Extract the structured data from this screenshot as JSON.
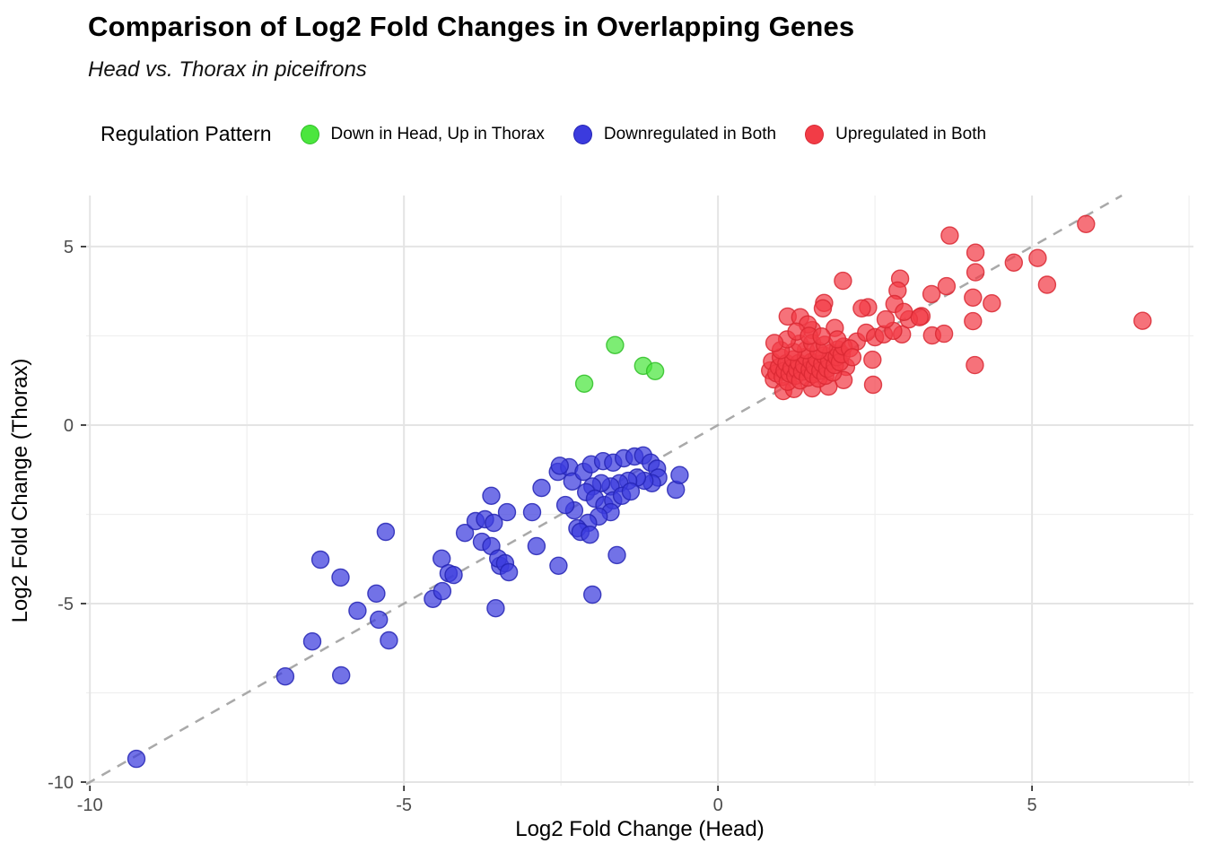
{
  "title": "Comparison of Log2 Fold Changes in Overlapping Genes",
  "subtitle": "Head vs. Thorax in piceifrons",
  "legend": {
    "title": "Regulation Pattern",
    "items": [
      {
        "label": "Down in Head, Up in Thorax",
        "color": "#4BE63E",
        "stroke": "#2FBF27"
      },
      {
        "label": "Downregulated in Both",
        "color": "#3B3BDE",
        "stroke": "#2424B4"
      },
      {
        "label": "Upregulated in Both",
        "color": "#F23C46",
        "stroke": "#D92833"
      }
    ]
  },
  "chart_data": {
    "type": "scatter",
    "title": "Comparison of Log2 Fold Changes in Overlapping Genes",
    "subtitle": "Head vs. Thorax in piceifrons",
    "xlabel": "Log2 Fold Change (Head)",
    "ylabel": "Log2 Fold Change (Thorax)",
    "xlim": [
      -10.06,
      7.57
    ],
    "ylim": [
      -10.1,
      6.43
    ],
    "x_ticks": [
      -10,
      -5,
      0,
      5
    ],
    "y_ticks": [
      5,
      0,
      -5,
      -10
    ],
    "grid": true,
    "legend_position": "top",
    "identity_line": {
      "equation": "y = x",
      "style": "dashed",
      "color": "#A9A9A9"
    },
    "series": [
      {
        "name": "Down in Head, Up in Thorax",
        "color": "#4BE63E",
        "stroke": "#2FBF27",
        "points": [
          [
            -1.64,
            2.24
          ],
          [
            -2.13,
            1.16
          ],
          [
            -1.19,
            1.66
          ],
          [
            -1.0,
            1.51
          ]
        ]
      },
      {
        "name": "Downregulated in Both",
        "color": "#3B3BDE",
        "stroke": "#2424B4",
        "points": [
          [
            -9.26,
            -9.35
          ],
          [
            -6.89,
            -7.04
          ],
          [
            -6.0,
            -7.01
          ],
          [
            -6.46,
            -6.06
          ],
          [
            -5.24,
            -6.03
          ],
          [
            -5.74,
            -5.2
          ],
          [
            -5.4,
            -5.45
          ],
          [
            -5.44,
            -4.72
          ],
          [
            -6.33,
            -3.77
          ],
          [
            -6.01,
            -4.27
          ],
          [
            -5.29,
            -2.99
          ],
          [
            -4.54,
            -4.87
          ],
          [
            -4.39,
            -4.65
          ],
          [
            -3.54,
            -5.13
          ],
          [
            -2.0,
            -4.75
          ],
          [
            -1.61,
            -3.64
          ],
          [
            -4.4,
            -3.74
          ],
          [
            -4.29,
            -4.15
          ],
          [
            -4.21,
            -4.2
          ],
          [
            -4.03,
            -3.02
          ],
          [
            -3.86,
            -2.69
          ],
          [
            -3.71,
            -2.64
          ],
          [
            -3.57,
            -2.74
          ],
          [
            -3.76,
            -3.27
          ],
          [
            -3.61,
            -3.39
          ],
          [
            -3.47,
            -3.94
          ],
          [
            -3.5,
            -3.74
          ],
          [
            -3.39,
            -3.87
          ],
          [
            -3.33,
            -4.12
          ],
          [
            -2.89,
            -3.39
          ],
          [
            -2.54,
            -3.94
          ],
          [
            -3.61,
            -1.98
          ],
          [
            -3.36,
            -2.44
          ],
          [
            -2.96,
            -2.44
          ],
          [
            -2.81,
            -1.76
          ],
          [
            -2.55,
            -1.31
          ],
          [
            -2.37,
            -1.18
          ],
          [
            -2.52,
            -1.14
          ],
          [
            -2.32,
            -1.58
          ],
          [
            -2.14,
            -1.31
          ],
          [
            -2.02,
            -1.1
          ],
          [
            -1.83,
            -1.01
          ],
          [
            -1.67,
            -1.05
          ],
          [
            -1.5,
            -0.93
          ],
          [
            -1.33,
            -0.88
          ],
          [
            -1.19,
            -0.85
          ],
          [
            -1.07,
            -1.05
          ],
          [
            -0.97,
            -1.22
          ],
          [
            -0.95,
            -1.47
          ],
          [
            -1.05,
            -1.63
          ],
          [
            -1.17,
            -1.56
          ],
          [
            -1.29,
            -1.47
          ],
          [
            -1.43,
            -1.56
          ],
          [
            -1.57,
            -1.63
          ],
          [
            -1.71,
            -1.72
          ],
          [
            -1.86,
            -1.63
          ],
          [
            -2.0,
            -1.72
          ],
          [
            -2.1,
            -1.88
          ],
          [
            -1.96,
            -2.06
          ],
          [
            -1.81,
            -2.24
          ],
          [
            -1.67,
            -2.11
          ],
          [
            -1.53,
            -1.98
          ],
          [
            -1.39,
            -1.86
          ],
          [
            -1.71,
            -2.44
          ],
          [
            -1.9,
            -2.56
          ],
          [
            -2.07,
            -2.74
          ],
          [
            -2.24,
            -2.89
          ],
          [
            -2.29,
            -2.39
          ],
          [
            -2.43,
            -2.24
          ],
          [
            -2.19,
            -2.99
          ],
          [
            -2.04,
            -3.07
          ],
          [
            -0.67,
            -1.81
          ],
          [
            -0.61,
            -1.4
          ]
        ]
      },
      {
        "name": "Upregulated in Both",
        "color": "#F23C46",
        "stroke": "#D92833",
        "points": [
          [
            3.69,
            5.31
          ],
          [
            5.86,
            5.63
          ],
          [
            4.1,
            4.83
          ],
          [
            4.71,
            4.55
          ],
          [
            5.09,
            4.68
          ],
          [
            4.1,
            4.28
          ],
          [
            5.24,
            3.93
          ],
          [
            3.4,
            3.67
          ],
          [
            3.64,
            3.89
          ],
          [
            4.06,
            3.57
          ],
          [
            4.36,
            3.41
          ],
          [
            3.24,
            3.05
          ],
          [
            4.06,
            2.91
          ],
          [
            6.76,
            2.92
          ],
          [
            4.09,
            1.68
          ],
          [
            3.41,
            2.51
          ],
          [
            3.6,
            2.56
          ],
          [
            2.93,
            2.54
          ],
          [
            3.04,
            2.96
          ],
          [
            3.21,
            3.02
          ],
          [
            1.99,
            4.04
          ],
          [
            2.9,
            4.1
          ],
          [
            2.86,
            3.77
          ],
          [
            2.81,
            3.39
          ],
          [
            1.69,
            3.42
          ],
          [
            2.39,
            3.3
          ],
          [
            2.21,
            2.34
          ],
          [
            2.36,
            2.59
          ],
          [
            2.5,
            2.46
          ],
          [
            2.64,
            2.54
          ],
          [
            2.79,
            2.64
          ],
          [
            2.46,
            1.83
          ],
          [
            2.47,
            1.13
          ],
          [
            2.04,
            1.63
          ],
          [
            2.0,
            1.26
          ],
          [
            1.11,
            3.04
          ],
          [
            1.31,
            3.02
          ],
          [
            1.67,
            3.27
          ],
          [
            2.29,
            3.27
          ],
          [
            2.96,
            3.17
          ],
          [
            2.67,
            2.96
          ],
          [
            1.5,
            2.66
          ],
          [
            1.43,
            2.82
          ],
          [
            1.86,
            2.72
          ],
          [
            0.83,
            1.53
          ],
          [
            0.86,
            1.78
          ],
          [
            0.89,
            1.28
          ],
          [
            1.04,
            0.95
          ],
          [
            1.21,
            1.01
          ],
          [
            1.5,
            1.03
          ],
          [
            1.76,
            1.08
          ],
          [
            0.93,
            1.45
          ],
          [
            0.97,
            1.62
          ],
          [
            1.0,
            1.9
          ],
          [
            1.03,
            1.35
          ],
          [
            1.06,
            1.52
          ],
          [
            1.09,
            1.73
          ],
          [
            1.11,
            1.21
          ],
          [
            1.14,
            1.44
          ],
          [
            1.17,
            1.6
          ],
          [
            1.2,
            1.84
          ],
          [
            1.23,
            1.38
          ],
          [
            1.26,
            1.56
          ],
          [
            1.29,
            1.74
          ],
          [
            1.31,
            1.25
          ],
          [
            1.34,
            1.49
          ],
          [
            1.37,
            1.67
          ],
          [
            1.4,
            1.91
          ],
          [
            1.43,
            1.33
          ],
          [
            1.46,
            1.55
          ],
          [
            1.49,
            1.77
          ],
          [
            1.51,
            1.42
          ],
          [
            1.54,
            1.64
          ],
          [
            1.57,
            1.86
          ],
          [
            1.6,
            1.3
          ],
          [
            1.63,
            1.52
          ],
          [
            1.66,
            1.72
          ],
          [
            1.69,
            1.95
          ],
          [
            1.71,
            1.38
          ],
          [
            1.74,
            1.58
          ],
          [
            1.77,
            1.8
          ],
          [
            1.8,
            2.02
          ],
          [
            1.83,
            1.47
          ],
          [
            1.86,
            1.68
          ],
          [
            1.89,
            1.9
          ],
          [
            1.91,
            2.12
          ],
          [
            1.94,
            1.76
          ],
          [
            1.97,
            1.98
          ],
          [
            2.0,
            2.2
          ],
          [
            1.4,
            2.1
          ],
          [
            1.2,
            2.05
          ],
          [
            1.6,
            2.08
          ],
          [
            1.0,
            2.1
          ],
          [
            1.3,
            2.28
          ],
          [
            1.5,
            2.3
          ],
          [
            1.7,
            2.25
          ],
          [
            1.1,
            2.4
          ],
          [
            1.9,
            2.4
          ],
          [
            2.1,
            2.15
          ],
          [
            0.9,
            2.3
          ],
          [
            1.25,
            2.62
          ],
          [
            1.45,
            2.5
          ],
          [
            1.65,
            2.48
          ],
          [
            2.14,
            1.9
          ]
        ]
      }
    ]
  }
}
